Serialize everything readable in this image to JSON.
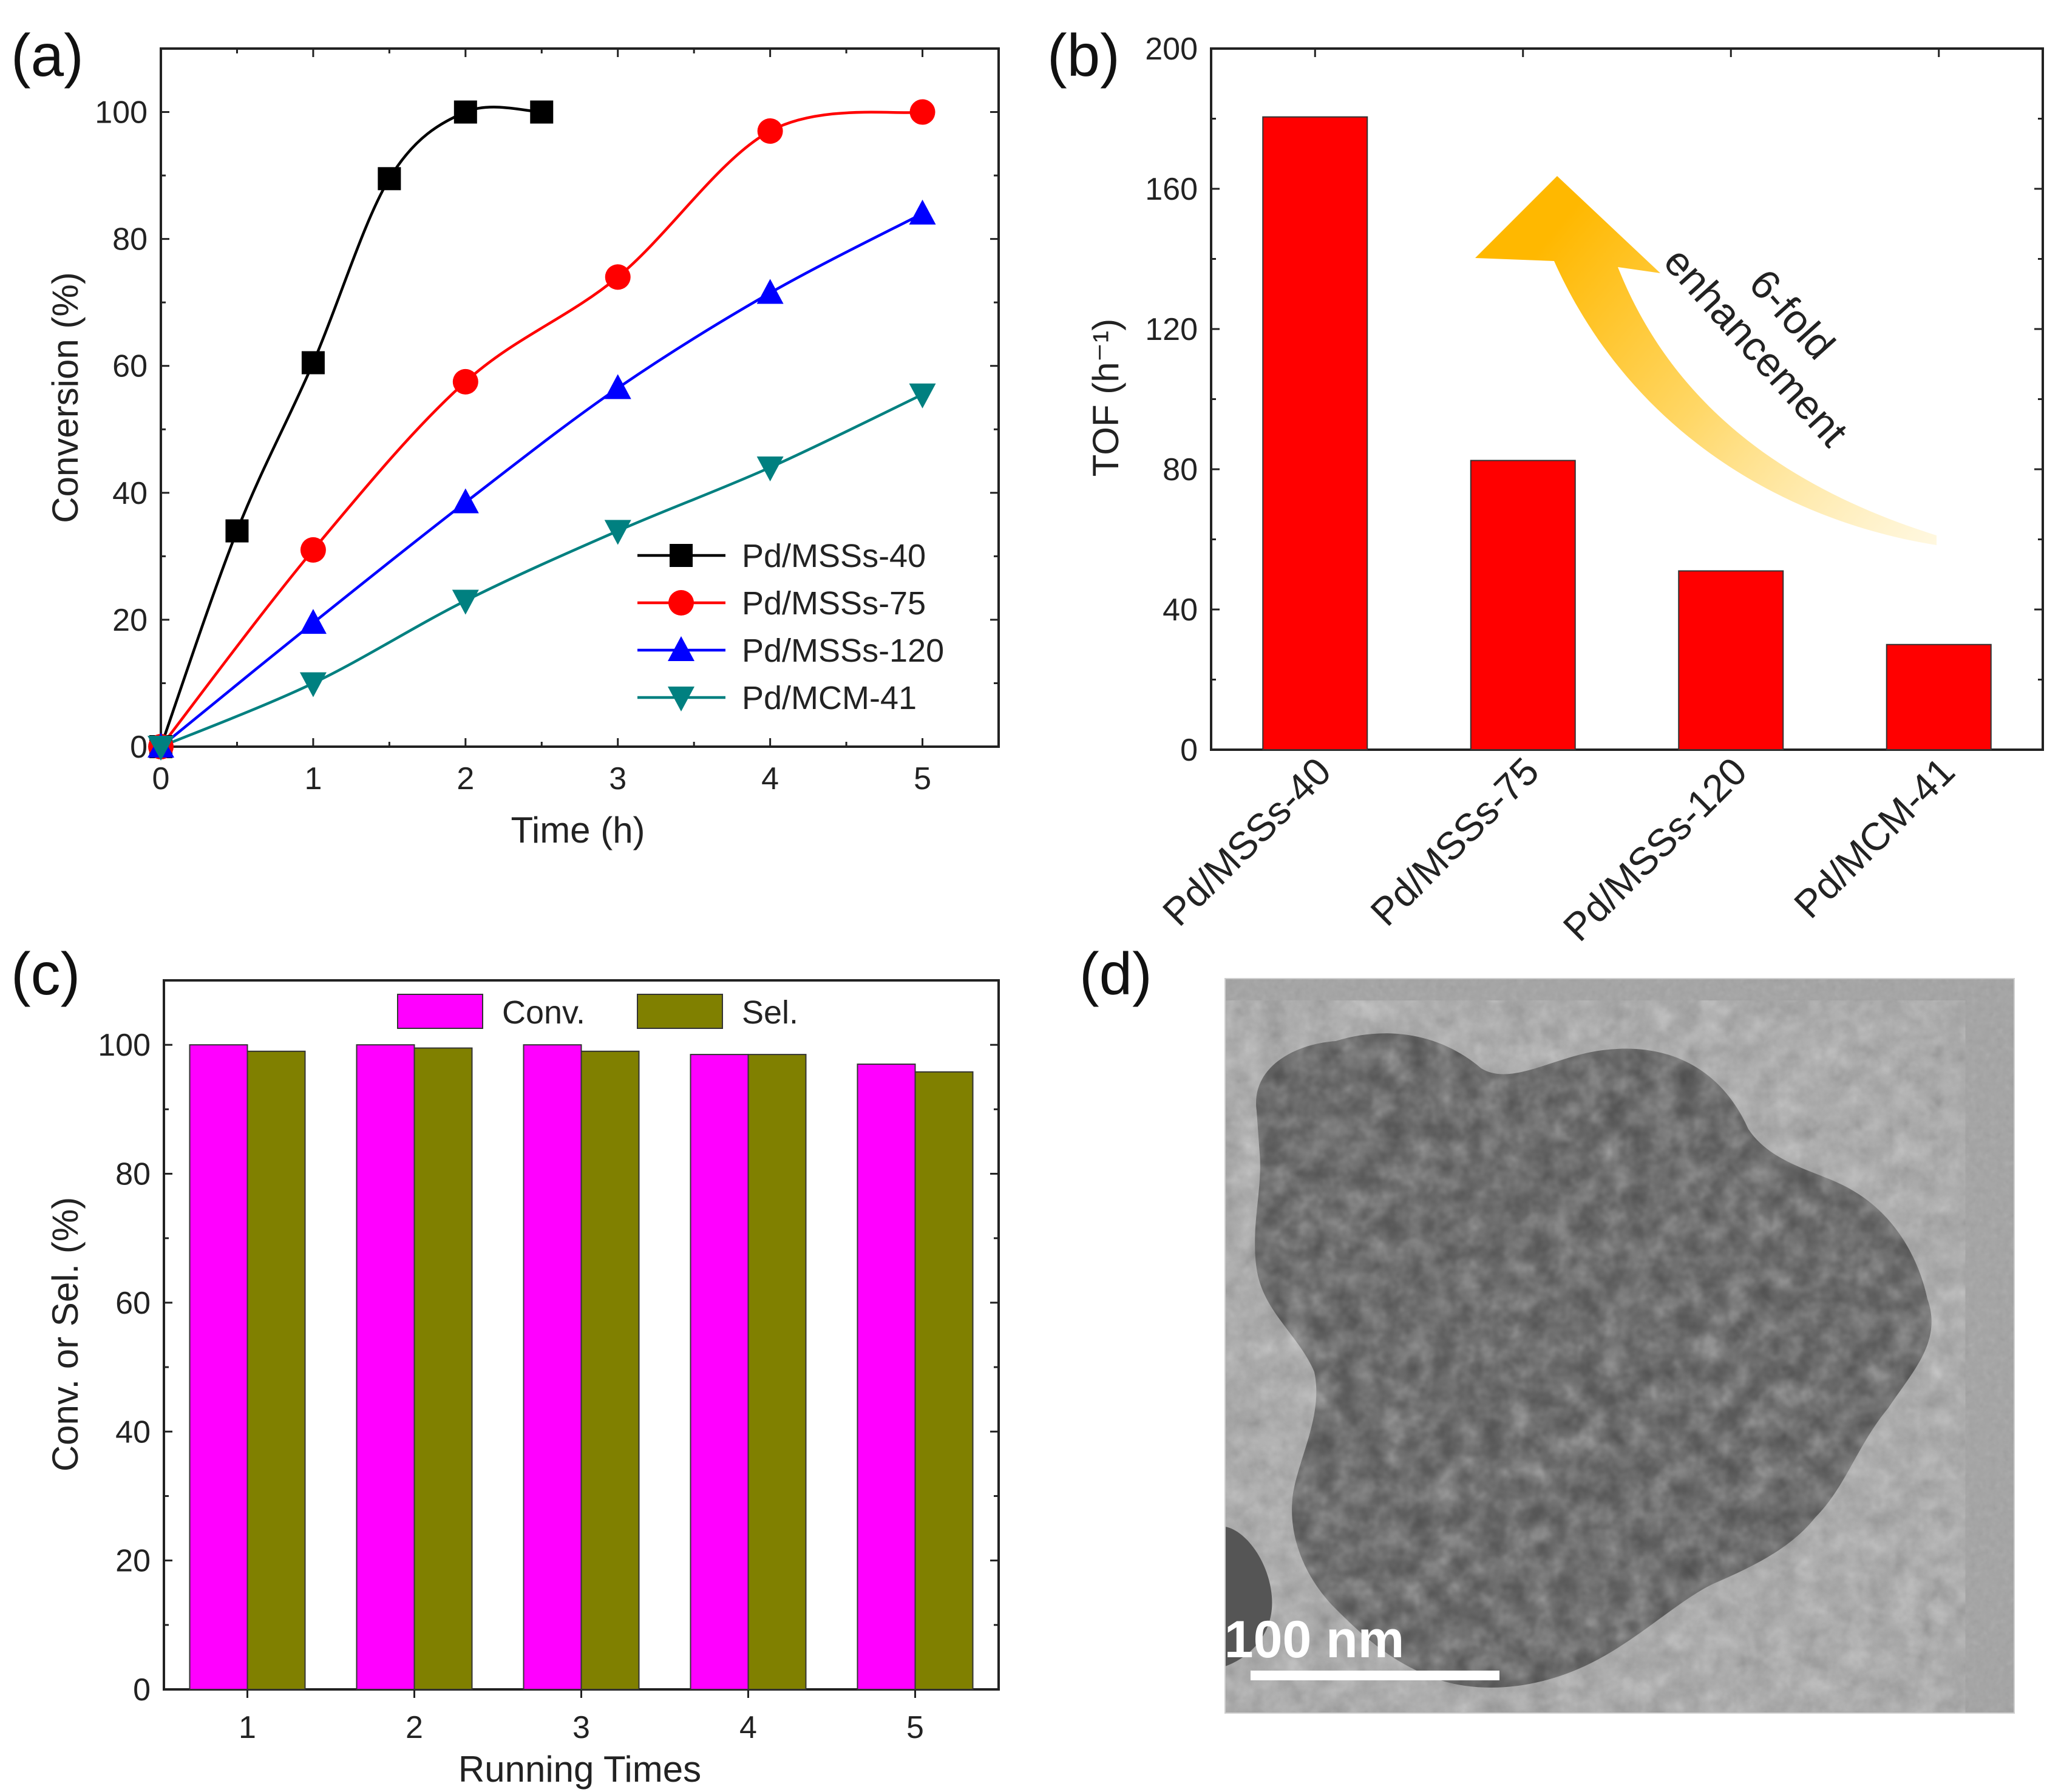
{
  "figure": {
    "panels": {
      "a": {
        "label": "(a)"
      },
      "b": {
        "label": "(b)"
      },
      "c": {
        "label": "(c)"
      },
      "d": {
        "label": "(d)"
      }
    }
  },
  "chart_data": [
    {
      "id": "a",
      "type": "line",
      "xlabel": "Time (h)",
      "ylabel": "Conversion (%)",
      "xlim": [
        0,
        5.5
      ],
      "ylim": [
        0,
        110
      ],
      "xticks": [
        0,
        1,
        2,
        3,
        4,
        5
      ],
      "yticks": [
        0,
        20,
        40,
        60,
        80,
        100
      ],
      "legend_position": "bottom-right",
      "series": [
        {
          "name": "Pd/MSSs-40",
          "color": "#000000",
          "marker": "square",
          "x": [
            0,
            0.5,
            1,
            1.5,
            2,
            2.5
          ],
          "y": [
            0,
            34,
            60.5,
            89.5,
            100,
            100
          ]
        },
        {
          "name": "Pd/MSSs-75",
          "color": "#ff0000",
          "marker": "circle",
          "x": [
            0,
            1,
            2,
            3,
            4,
            5
          ],
          "y": [
            0,
            31,
            57.5,
            74,
            97,
            100
          ]
        },
        {
          "name": "Pd/MSSs-120",
          "color": "#0000ff",
          "marker": "triangle-up",
          "x": [
            0,
            1,
            2,
            3,
            4,
            5
          ],
          "y": [
            0,
            19.5,
            38.5,
            56.5,
            71.5,
            84
          ]
        },
        {
          "name": "Pd/MCM-41",
          "color": "#008080",
          "marker": "triangle-down",
          "x": [
            0,
            1,
            2,
            3,
            4,
            5
          ],
          "y": [
            0,
            10,
            23,
            34,
            44,
            55.5
          ]
        }
      ]
    },
    {
      "id": "b",
      "type": "bar",
      "ylabel": "TOF (h⁻¹)",
      "ylim": [
        0,
        200
      ],
      "yticks": [
        0,
        40,
        80,
        120,
        160,
        200
      ],
      "categories": [
        "Pd/MSSs-40",
        "Pd/MSSs-75",
        "Pd/MSSs-120",
        "Pd/MCM-41"
      ],
      "values": [
        180.5,
        82.5,
        51,
        30
      ],
      "bar_color": "#ff0000",
      "annotation": {
        "line1": "6-fold",
        "line2": "enhancement"
      }
    },
    {
      "id": "c",
      "type": "bar",
      "xlabel": "Running Times",
      "ylabel": "Conv. or Sel. (%)",
      "ylim": [
        0,
        110
      ],
      "yticks": [
        0,
        20,
        40,
        60,
        80,
        100
      ],
      "categories": [
        "1",
        "2",
        "3",
        "4",
        "5"
      ],
      "legend_position": "top-center",
      "series": [
        {
          "name": "Conv.",
          "color": "#ff00ff",
          "values": [
            100,
            100,
            100,
            98.5,
            97
          ]
        },
        {
          "name": "Sel.",
          "color": "#808000",
          "values": [
            99,
            99.5,
            99,
            98.5,
            95.8
          ]
        }
      ]
    }
  ],
  "micrograph": {
    "scale_bar_label": "100 nm"
  }
}
